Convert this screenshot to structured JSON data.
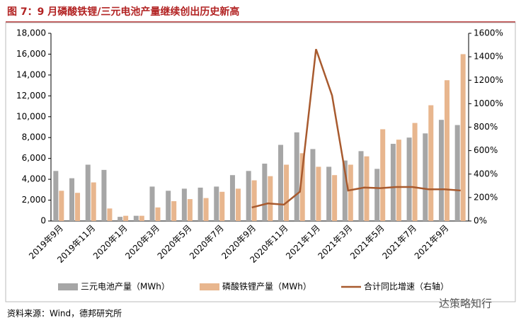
{
  "chart_data": {
    "type": "bar_line",
    "title": "图 7：9 月磷酸铁锂/三元电池产量继续创出历史新高",
    "source": "资料来源：Wind，德邦研究所",
    "watermark": "达策略知行",
    "categories": [
      "2019年9月",
      null,
      "2019年11月",
      null,
      "2020年1月",
      null,
      "2020年3月",
      null,
      "2020年5月",
      null,
      "2020年7月",
      null,
      "2020年9月",
      null,
      "2020年11月",
      null,
      "2021年1月",
      null,
      "2021年3月",
      null,
      "2021年5月",
      null,
      "2021年7月",
      null,
      "2021年9月",
      null
    ],
    "series": [
      {
        "name": "三元电池产量（MWh）",
        "color": "#a6a6a6",
        "kind": "bar",
        "values": [
          4800,
          4100,
          5400,
          4900,
          400,
          500,
          3300,
          2900,
          3100,
          3200,
          3300,
          4400,
          4800,
          5500,
          7300,
          8500,
          6900,
          5200,
          5800,
          6700,
          5000,
          7400,
          8000,
          8400,
          9700,
          9200
        ]
      },
      {
        "name": "磷酸铁锂产量（MWh）",
        "color": "#e8b68e",
        "kind": "bar",
        "values": [
          2900,
          2700,
          3700,
          1200,
          500,
          500,
          1300,
          1900,
          2100,
          2200,
          2800,
          3100,
          3900,
          4300,
          5400,
          6500,
          5200,
          4400,
          5400,
          6200,
          8800,
          7800,
          9400,
          11100,
          13500,
          16000
        ]
      },
      {
        "name": "合计同比增速（右轴）",
        "color": "#a85a2e",
        "kind": "line",
        "axis": "y2",
        "values": [
          null,
          null,
          null,
          null,
          null,
          null,
          null,
          null,
          null,
          null,
          null,
          null,
          115,
          150,
          140,
          250,
          1465,
          1070,
          260,
          285,
          280,
          290,
          290,
          270,
          270,
          260
        ]
      }
    ],
    "ylim": [
      0,
      18000
    ],
    "yticks": [
      0,
      {
        "value": 2000,
        "label": "2,000"
      },
      {
        "value": 4000,
        "label": "4,000"
      },
      {
        "value": 6000,
        "label": "6,000"
      },
      {
        "value": 8000,
        "label": "8,000"
      },
      {
        "value": 10000,
        "label": "10,000"
      },
      {
        "value": 12000,
        "label": "12,000"
      },
      {
        "value": 14000,
        "label": "14,000"
      },
      {
        "value": 16000,
        "label": "16,000"
      },
      {
        "value": 18000,
        "label": "18,000"
      }
    ],
    "y2lim": [
      0,
      1600
    ],
    "y2ticks": [
      {
        "value": 0,
        "label": "0%"
      },
      {
        "value": 200,
        "label": "200%"
      },
      {
        "value": 400,
        "label": "400%"
      },
      {
        "value": 600,
        "label": "600%"
      },
      {
        "value": 800,
        "label": "800%"
      },
      {
        "value": 1000,
        "label": "1000%"
      },
      {
        "value": 1200,
        "label": "1200%"
      },
      {
        "value": 1400,
        "label": "1400%"
      },
      {
        "value": 1600,
        "label": "1600%"
      }
    ],
    "grid": false,
    "legend": "bottom"
  }
}
